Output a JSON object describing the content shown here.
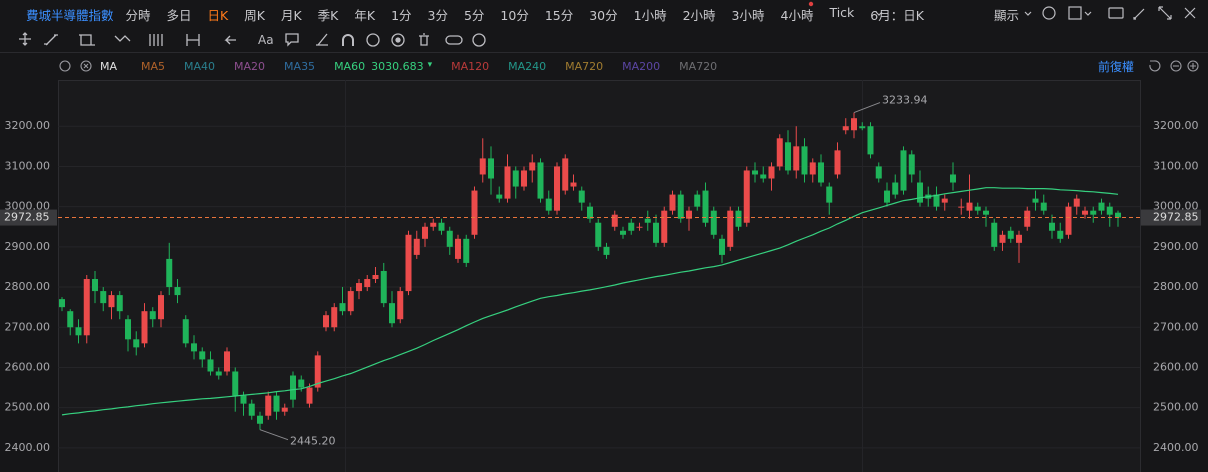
{
  "toolbar": {
    "title": "費城半導體指數",
    "periods": [
      "分時",
      "多日",
      "日K",
      "周K",
      "月K",
      "季K",
      "年K",
      "1分",
      "3分",
      "5分",
      "10分",
      "15分",
      "30分",
      "1小時",
      "2小時",
      "3小時",
      "4小時",
      "Tick",
      "6月：日K"
    ],
    "active_period": 2,
    "active_color": "#ff7a1a",
    "display": "顯示"
  },
  "drawing_tools": {
    "text_tool": "Aa"
  },
  "indicator_bar": {
    "name": "MA",
    "lines_before": [
      {
        "name": "MA5",
        "color": "#b0622a"
      },
      {
        "name": "MA40",
        "color": "#2a7f8e"
      },
      {
        "name": "MA20",
        "color": "#8e4f90"
      },
      {
        "name": "MA35",
        "color": "#2f6d9f"
      }
    ],
    "lines_after": [
      {
        "name": "MA120",
        "color": "#b93a3a"
      },
      {
        "name": "MA240",
        "color": "#23978a"
      },
      {
        "name": "MA720",
        "color": "#a17c30"
      },
      {
        "name": "MA200",
        "color": "#5b46a3"
      },
      {
        "name": "MA720",
        "color": "#6e6e72"
      }
    ],
    "adjust": "前復權"
  },
  "chart_data": {
    "type": "candlestick",
    "up_color": "#eb4b4b",
    "down_color": "#1fb45a",
    "ylim": [
      2340,
      3315
    ],
    "yticks": [
      {
        "value": 2400,
        "label": "2400.00"
      },
      {
        "value": 2500,
        "label": "2500.00"
      },
      {
        "value": 2600,
        "label": "2600.00"
      },
      {
        "value": 2700,
        "label": "2700.00"
      },
      {
        "value": 2800,
        "label": "2800.00"
      },
      {
        "value": 2900,
        "label": "2900.00"
      },
      {
        "value": 3000,
        "label": "3000.00"
      },
      {
        "value": 3100,
        "label": "3100.00"
      },
      {
        "value": 3200,
        "label": "3200.00"
      }
    ],
    "grid": true,
    "last_price_color": "#e8743b",
    "annotations": [
      {
        "text": "3233.94"
      },
      {
        "text": "2445.20"
      }
    ],
    "open": [
      2770,
      2740,
      2700,
      2680,
      2820,
      2790,
      2750,
      2780,
      2720,
      2670,
      2660,
      2740,
      2720,
      2870,
      2800,
      2720,
      2660,
      2640,
      2620,
      2590,
      2590,
      2590,
      2530,
      2510,
      2480,
      2480,
      2530,
      2490,
      2580,
      2570,
      2510,
      2550,
      2700,
      2700,
      2760,
      2740,
      2790,
      2800,
      2820,
      2840,
      2760,
      2720,
      2790,
      2880,
      2920,
      2950,
      2960,
      2940,
      2870,
      2920,
      2930,
      3080,
      3120,
      3030,
      3020,
      3090,
      3050,
      3090,
      3110,
      3020,
      2990,
      3040,
      3050,
      3040,
      3000,
      2960,
      2900,
      2950,
      2940,
      2960,
      2950,
      2970,
      2960,
      2910,
      2990,
      3030,
      2970,
      3030,
      3040,
      2990,
      2920,
      2900,
      2990,
      2960,
      3090,
      3080,
      3070,
      3100,
      3160,
      3090,
      3150,
      3080,
      3110,
      3050,
      3080,
      3190,
      3190,
      3200,
      3200,
      3100,
      3040,
      3060,
      3140,
      3130,
      3060,
      3030,
      3030,
      3010,
      3080,
      3000,
      2990,
      3000,
      2990,
      2960,
      2910,
      2940,
      2910,
      2950,
      3020,
      3010,
      2960,
      2940,
      2930,
      3000,
      2980,
      2990,
      3010,
      3000,
      2985
    ],
    "high": [
      2775,
      2745,
      2720,
      2830,
      2840,
      2800,
      2790,
      2790,
      2730,
      2690,
      2760,
      2750,
      2790,
      2910,
      2820,
      2730,
      2680,
      2650,
      2640,
      2600,
      2650,
      2600,
      2540,
      2520,
      2490,
      2540,
      2540,
      2510,
      2590,
      2580,
      2560,
      2640,
      2740,
      2760,
      2800,
      2800,
      2820,
      2830,
      2850,
      2860,
      2790,
      2800,
      2940,
      2940,
      2960,
      2970,
      2970,
      2950,
      2930,
      2930,
      3050,
      3170,
      3150,
      3050,
      3130,
      3100,
      3100,
      3130,
      3120,
      3040,
      3110,
      3130,
      3080,
      3050,
      3010,
      2970,
      2910,
      2990,
      2950,
      2970,
      2960,
      2990,
      2980,
      3000,
      3040,
      3040,
      3000,
      3040,
      3060,
      3000,
      2930,
      3000,
      3000,
      3100,
      3110,
      3100,
      3110,
      3180,
      3190,
      3200,
      3170,
      3120,
      3130,
      3060,
      3160,
      3220,
      3233.94,
      3210,
      3210,
      3110,
      3060,
      3080,
      3150,
      3140,
      3090,
      3050,
      3050,
      3030,
      3110,
      3020,
      3080,
      3010,
      3000,
      2970,
      2940,
      2950,
      2940,
      3000,
      3040,
      3030,
      2980,
      2960,
      3010,
      3030,
      3000,
      3000,
      3020,
      3010,
      2990
    ],
    "low": [
      2740,
      2680,
      2660,
      2660,
      2760,
      2740,
      2720,
      2720,
      2640,
      2630,
      2650,
      2700,
      2700,
      2780,
      2760,
      2650,
      2620,
      2600,
      2580,
      2570,
      2580,
      2490,
      2480,
      2470,
      2445.2,
      2470,
      2470,
      2480,
      2500,
      2540,
      2500,
      2540,
      2690,
      2690,
      2730,
      2730,
      2770,
      2790,
      2810,
      2750,
      2700,
      2710,
      2780,
      2870,
      2900,
      2940,
      2930,
      2880,
      2860,
      2850,
      2920,
      3060,
      3030,
      3010,
      3010,
      3020,
      3040,
      3060,
      3010,
      2980,
      2980,
      3030,
      3040,
      2990,
      2960,
      2890,
      2870,
      2940,
      2920,
      2930,
      2940,
      2940,
      2900,
      2900,
      2980,
      2960,
      2940,
      2990,
      2950,
      2920,
      2860,
      2890,
      2940,
      2950,
      3060,
      3060,
      3040,
      3090,
      3080,
      3070,
      3060,
      3060,
      3050,
      2980,
      3070,
      3180,
      3170,
      3190,
      3120,
      3060,
      3000,
      3020,
      3030,
      3060,
      3000,
      3000,
      2990,
      2990,
      3040,
      2980,
      2970,
      2980,
      2950,
      2890,
      2890,
      2910,
      2860,
      2940,
      2990,
      2980,
      2920,
      2910,
      2920,
      2980,
      2970,
      2960,
      2980,
      2950,
      2950
    ],
    "close": [
      2750,
      2700,
      2680,
      2820,
      2790,
      2760,
      2780,
      2740,
      2670,
      2650,
      2740,
      2720,
      2780,
      2800,
      2780,
      2660,
      2640,
      2620,
      2590,
      2580,
      2640,
      2530,
      2510,
      2480,
      2460,
      2530,
      2490,
      2500,
      2520,
      2550,
      2550,
      2630,
      2730,
      2750,
      2740,
      2790,
      2810,
      2820,
      2830,
      2760,
      2710,
      2790,
      2930,
      2920,
      2950,
      2960,
      2940,
      2900,
      2920,
      2860,
      3040,
      3120,
      3070,
      3020,
      3100,
      3050,
      3090,
      3110,
      3020,
      2990,
      3100,
      3120,
      3060,
      3010,
      2970,
      2900,
      2880,
      2980,
      2930,
      2940,
      2950,
      2960,
      2910,
      2990,
      3030,
      2970,
      2990,
      3000,
      2960,
      2930,
      2880,
      2990,
      2950,
      3090,
      3080,
      3070,
      3100,
      3170,
      3090,
      3150,
      3080,
      3110,
      3060,
      3010,
      3140,
      3200,
      3220,
      3195,
      3130,
      3070,
      3010,
      3030,
      3040,
      3080,
      3010,
      3020,
      3000,
      3020,
      3060,
      3000,
      3010,
      2990,
      2980,
      2900,
      2930,
      2920,
      2930,
      2990,
      3010,
      2990,
      2940,
      2920,
      3000,
      3020,
      2990,
      2980,
      2990,
      2980,
      2972.85
    ],
    "series": [
      {
        "name": "MA60",
        "color": "#36d07f",
        "values": [
          2482,
          2485,
          2487,
          2490,
          2492,
          2495,
          2497,
          2500,
          2502,
          2505,
          2507,
          2510,
          2512,
          2514,
          2516,
          2518,
          2520,
          2522,
          2523,
          2525,
          2527,
          2529,
          2531,
          2533,
          2535,
          2537,
          2540,
          2542,
          2545,
          2547,
          2553,
          2560,
          2566,
          2572,
          2579,
          2585,
          2593,
          2601,
          2609,
          2617,
          2624,
          2632,
          2640,
          2648,
          2657,
          2667,
          2676,
          2685,
          2694,
          2704,
          2713,
          2722,
          2729,
          2736,
          2743,
          2751,
          2758,
          2765,
          2772,
          2776,
          2779,
          2783,
          2786,
          2790,
          2793,
          2797,
          2801,
          2805,
          2810,
          2814,
          2818,
          2822,
          2826,
          2829,
          2833,
          2837,
          2840,
          2844,
          2848,
          2851,
          2855,
          2861,
          2867,
          2873,
          2879,
          2885,
          2891,
          2897,
          2905,
          2914,
          2922,
          2930,
          2939,
          2947,
          2957,
          2966,
          2976,
          2985,
          2991,
          2997,
          3003,
          3009,
          3015,
          3018,
          3022,
          3025,
          3028,
          3032,
          3035,
          3038,
          3041,
          3044,
          3047,
          3047,
          3046,
          3046,
          3046,
          3045,
          3045,
          3045,
          3044,
          3042,
          3041,
          3040,
          3038,
          3037,
          3035,
          3033,
          3030.683
        ]
      }
    ]
  }
}
